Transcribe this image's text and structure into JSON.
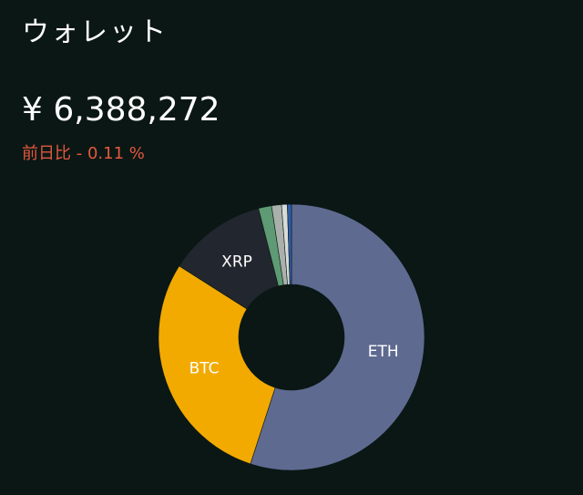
{
  "header": {
    "title": "ウォレット",
    "amount": "¥ 6,388,272",
    "change": "前日比 - 0.11 %"
  },
  "chart_data": {
    "type": "donut",
    "categories": [
      "ETH",
      "BTC",
      "XRP",
      null,
      null,
      null,
      null
    ],
    "values": [
      55,
      29,
      12,
      1.6,
      1.2,
      0.7,
      0.5
    ],
    "colors": [
      "#5f6a91",
      "#f2aa00",
      "#22262e",
      "#5e9a73",
      "#aab0ac",
      "#d8dcd9",
      "#2d5da8"
    ]
  }
}
